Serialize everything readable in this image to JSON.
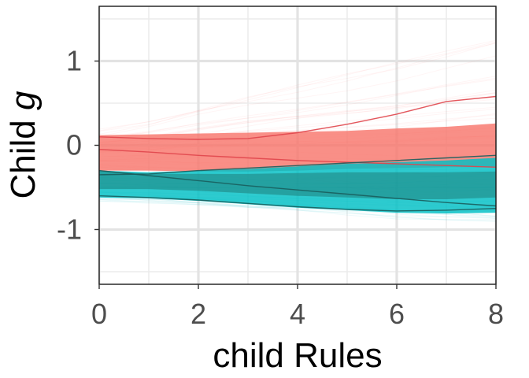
{
  "chart_data": {
    "type": "line",
    "xlabel": "child Rules",
    "ylabel_prefix": "Child ",
    "ylabel_var": "g",
    "xlim": [
      0,
      8
    ],
    "ylim": [
      -1.65,
      1.65
    ],
    "x_ticks": [
      0,
      2,
      4,
      6,
      8
    ],
    "x_tick_labels": [
      "0",
      "2",
      "4",
      "6",
      "8"
    ],
    "y_ticks": [
      -1,
      0,
      1
    ],
    "y_tick_labels": [
      "-1",
      "0",
      "1"
    ],
    "grid": true,
    "legend": "none",
    "x": [
      0,
      1,
      2,
      3,
      4,
      5,
      6,
      7,
      8
    ],
    "series": [
      {
        "color": "#F8766D",
        "band_upper": [
          0.12,
          0.13,
          0.14,
          0.15,
          0.16,
          0.17,
          0.2,
          0.22,
          0.26
        ],
        "band_lower": [
          -0.3,
          -0.3,
          -0.31,
          -0.31,
          -0.3,
          -0.28,
          -0.27,
          -0.26,
          -0.26
        ],
        "spread_upper": [
          0.2,
          0.3,
          0.45,
          0.6,
          0.75,
          0.9,
          1.05,
          1.2,
          1.35
        ],
        "spread_lower": [
          -0.3,
          -0.33,
          -0.38,
          -0.45,
          -0.55,
          -0.65,
          -0.75,
          -0.82,
          -0.9
        ],
        "highlight_lines": [
          [
            0.1,
            0.08,
            0.07,
            0.08,
            0.15,
            0.25,
            0.37,
            0.52,
            0.58
          ],
          [
            -0.05,
            -0.08,
            -0.12,
            -0.15,
            -0.18,
            -0.2,
            -0.22,
            -0.24,
            -0.26
          ]
        ]
      },
      {
        "color": "#00BFC4",
        "band_upper": [
          -0.3,
          -0.32,
          -0.3,
          -0.28,
          -0.25,
          -0.22,
          -0.2,
          -0.18,
          -0.15
        ],
        "band_lower": [
          -0.62,
          -0.63,
          -0.66,
          -0.7,
          -0.74,
          -0.77,
          -0.8,
          -0.81,
          -0.8
        ],
        "spread_upper": [
          -0.3,
          -0.3,
          -0.28,
          -0.26,
          -0.23,
          -0.2,
          -0.15,
          -0.1,
          -0.05
        ],
        "spread_lower": [
          -0.65,
          -0.67,
          -0.7,
          -0.74,
          -0.78,
          -0.82,
          -0.86,
          -0.88,
          -0.9
        ],
        "highlight_lines": [
          [
            -0.3,
            -0.36,
            -0.42,
            -0.48,
            -0.53,
            -0.58,
            -0.63,
            -0.68,
            -0.72
          ],
          [
            -0.6,
            -0.62,
            -0.65,
            -0.69,
            -0.73,
            -0.76,
            -0.78,
            -0.77,
            -0.75
          ],
          [
            -0.35,
            -0.34,
            -0.3,
            -0.27,
            -0.24,
            -0.21,
            -0.18,
            -0.15,
            -0.12
          ]
        ]
      }
    ]
  }
}
